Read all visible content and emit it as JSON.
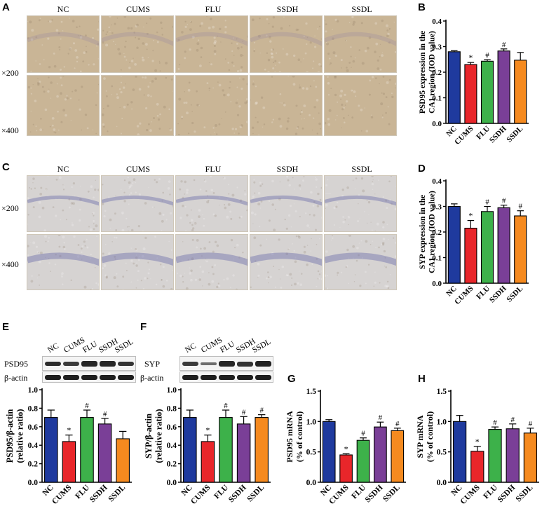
{
  "figure": {
    "panel_labels": [
      "A",
      "B",
      "C",
      "D",
      "E",
      "F",
      "G",
      "H"
    ],
    "ihc_A": {
      "columns": [
        "NC",
        "CUMS",
        "FLU",
        "SSDH",
        "SSDL"
      ],
      "rows": [
        "×200",
        "×400"
      ],
      "stain_color": "#c9b596"
    },
    "ihc_C": {
      "columns": [
        "NC",
        "CUMS",
        "FLU",
        "SSDH",
        "SSDL"
      ],
      "rows": [
        "×200",
        "×400"
      ],
      "stain_color": "#d6d3d2"
    },
    "western_E": {
      "lanes": [
        "NC",
        "CUMS",
        "FLU",
        "SSDH",
        "SSDL"
      ],
      "target": "PSD95",
      "loading": "β-actin"
    },
    "western_F": {
      "lanes": [
        "NC",
        "CUMS",
        "FLU",
        "SSDH",
        "SSDL"
      ],
      "target": "SYP",
      "loading": "β-actin"
    }
  },
  "colors": {
    "NC": "#1f3a9e",
    "CUMS": "#e8262a",
    "FLU": "#3db14a",
    "SSDH": "#7a3f97",
    "SSDL": "#f58a1f"
  },
  "chart_data": [
    {
      "id": "B",
      "type": "bar",
      "categories": [
        "NC",
        "CUMS",
        "FLU",
        "SSDH",
        "SSDL"
      ],
      "values": [
        0.28,
        0.23,
        0.243,
        0.283,
        0.247
      ],
      "errors": [
        0.004,
        0.008,
        0.006,
        0.008,
        0.03
      ],
      "marks": [
        "",
        "*",
        "#",
        "#",
        ""
      ],
      "ylabel": "PSD95 expression in the CA1 region (IOD value)",
      "ylim": [
        0,
        0.4
      ],
      "ticks": [
        "0.0",
        "0.1",
        "0.2",
        "0.3",
        "0.4"
      ]
    },
    {
      "id": "D",
      "type": "bar",
      "categories": [
        "NC",
        "CUMS",
        "FLU",
        "SSDH",
        "SSDL"
      ],
      "values": [
        0.3,
        0.215,
        0.28,
        0.295,
        0.263
      ],
      "errors": [
        0.01,
        0.03,
        0.02,
        0.01,
        0.02
      ],
      "marks": [
        "",
        "*",
        "#",
        "#",
        "#"
      ],
      "ylabel": "SYP expression in the CA1 region (IOD value)",
      "ylim": [
        0,
        0.4
      ],
      "ticks": [
        "0.0",
        "0.1",
        "0.2",
        "0.3",
        "0.4"
      ]
    },
    {
      "id": "E",
      "type": "bar",
      "categories": [
        "NC",
        "CUMS",
        "FLU",
        "SSDH",
        "SSDL"
      ],
      "values": [
        0.7,
        0.44,
        0.7,
        0.63,
        0.47
      ],
      "errors": [
        0.08,
        0.07,
        0.08,
        0.06,
        0.08
      ],
      "marks": [
        "",
        "*",
        "#",
        "#",
        ""
      ],
      "ylabel": "PSD95/β-actin (relative ratio)",
      "ylim": [
        0,
        1.0
      ],
      "ticks": [
        "0.0",
        "0.2",
        "0.4",
        "0.6",
        "0.8",
        "1.0"
      ]
    },
    {
      "id": "F",
      "type": "bar",
      "categories": [
        "NC",
        "CUMS",
        "FLU",
        "SSDH",
        "SSDL"
      ],
      "values": [
        0.7,
        0.44,
        0.7,
        0.63,
        0.7
      ],
      "errors": [
        0.08,
        0.07,
        0.08,
        0.08,
        0.03
      ],
      "marks": [
        "",
        "*",
        "#",
        "#",
        "#"
      ],
      "ylabel": "SYP/β-actin (relative ratio)",
      "ylim": [
        0,
        1.0
      ],
      "ticks": [
        "0.0",
        "0.2",
        "0.4",
        "0.6",
        "0.8",
        "1.0"
      ]
    },
    {
      "id": "G",
      "type": "bar",
      "categories": [
        "NC",
        "CUMS",
        "FLU",
        "SSDH",
        "SSDL"
      ],
      "values": [
        1.0,
        0.45,
        0.69,
        0.91,
        0.85
      ],
      "errors": [
        0.03,
        0.02,
        0.04,
        0.08,
        0.04
      ],
      "marks": [
        "",
        "*",
        "#",
        "#",
        "#"
      ],
      "ylabel": "PSD95 mRNA (% of control)",
      "ylim": [
        0,
        1.5
      ],
      "ticks": [
        "0.0",
        "0.5",
        "1.0",
        "1.5"
      ]
    },
    {
      "id": "H",
      "type": "bar",
      "categories": [
        "NC",
        "CUMS",
        "FLU",
        "SSDH",
        "SSDL"
      ],
      "values": [
        1.0,
        0.51,
        0.87,
        0.88,
        0.81
      ],
      "errors": [
        0.1,
        0.08,
        0.04,
        0.08,
        0.08
      ],
      "marks": [
        "",
        "*",
        "#",
        "#",
        "#"
      ],
      "ylabel": "SYP mRNA (% of control)",
      "ylim": [
        0,
        1.5
      ],
      "ticks": [
        "0.0",
        "0.5",
        "1.0",
        "1.5"
      ]
    }
  ]
}
